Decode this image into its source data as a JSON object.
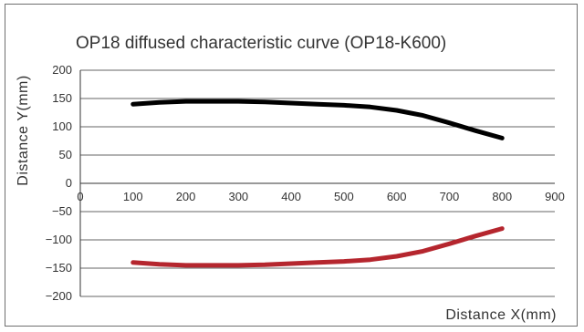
{
  "chart_data": {
    "type": "line",
    "title": "OP18 diffused characteristic curve (OP18-K600)",
    "xlabel": "Distance X(mm)",
    "ylabel": "Distance Y(mm)",
    "xlim": [
      0,
      900
    ],
    "ylim": [
      -200,
      200
    ],
    "x_ticks": [
      "0",
      "100",
      "200",
      "300",
      "400",
      "500",
      "600",
      "700",
      "800",
      "900"
    ],
    "y_ticks": [
      "200",
      "150",
      "100",
      "50",
      "0",
      "−50",
      "−100",
      "−150",
      "−200"
    ],
    "grid": "horizontal",
    "series": [
      {
        "color": "#000000",
        "x": [
          100,
          150,
          200,
          250,
          300,
          350,
          400,
          450,
          500,
          550,
          600,
          650,
          700,
          750,
          800
        ],
        "y": [
          140,
          143,
          145,
          145,
          145,
          144,
          142,
          140,
          138,
          135,
          129,
          120,
          107,
          93,
          80
        ]
      },
      {
        "color": "#b5262e",
        "x": [
          100,
          150,
          200,
          250,
          300,
          350,
          400,
          450,
          500,
          550,
          600,
          650,
          700,
          750,
          800
        ],
        "y": [
          -140,
          -143,
          -145,
          -145,
          -145,
          -144,
          -142,
          -140,
          -138,
          -135,
          -129,
          -120,
          -107,
          -93,
          -80
        ]
      }
    ]
  }
}
